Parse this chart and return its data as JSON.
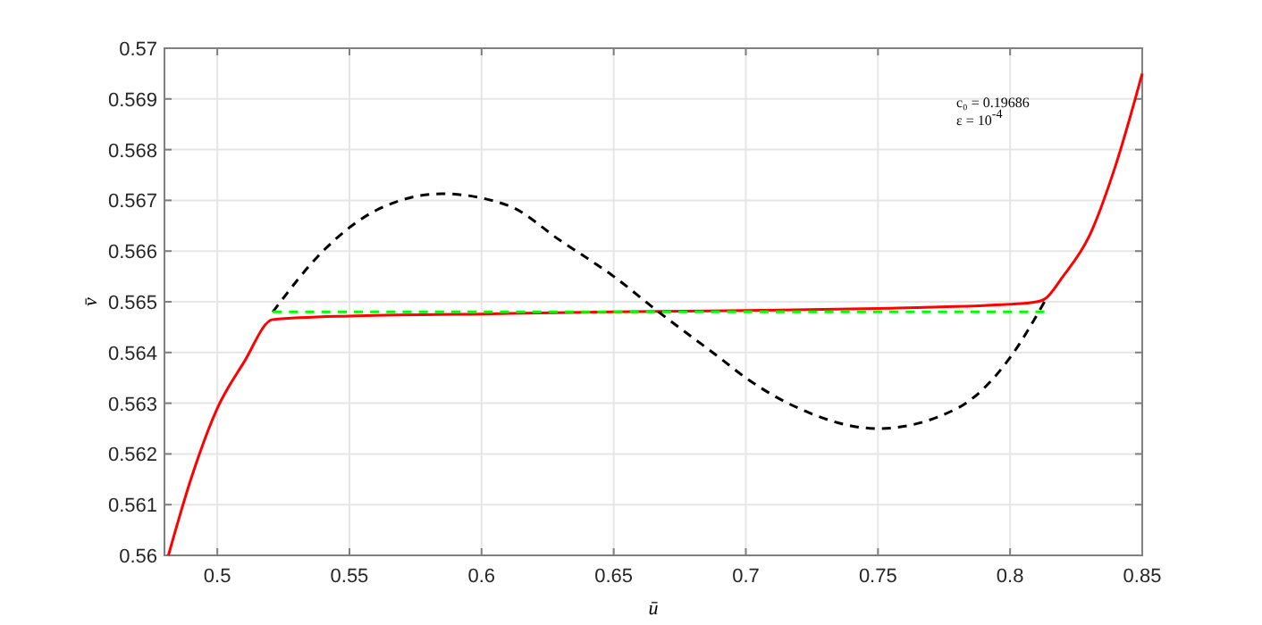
{
  "chart_data": {
    "type": "line",
    "xlabel": "ū",
    "ylabel": "v̄",
    "xlim": [
      0.48,
      0.85
    ],
    "xticks": [
      0.5,
      0.55,
      0.6,
      0.65,
      0.7,
      0.75,
      0.8,
      0.85
    ],
    "ylim": [
      0.56,
      0.57
    ],
    "yticks": [
      0.56,
      0.561,
      0.562,
      0.563,
      0.564,
      0.565,
      0.566,
      0.567,
      0.568,
      0.569,
      0.57
    ],
    "grid": true,
    "annotations": [
      "c₀ = 0.19686",
      "ε = 10$^{-4}$"
    ],
    "series": [
      {
        "color": "#ff0000",
        "line_style": "solid",
        "x": [
          0.4815,
          0.49,
          0.5,
          0.51,
          0.521,
          0.55,
          0.6,
          0.65,
          0.7,
          0.75,
          0.8,
          0.81,
          0.813,
          0.82,
          0.83,
          0.84,
          0.85
        ],
        "values": [
          0.56,
          0.5615,
          0.5629,
          0.5638,
          0.56465,
          0.56472,
          0.56476,
          0.5648,
          0.56483,
          0.56487,
          0.56495,
          0.565,
          0.56505,
          0.5655,
          0.5663,
          0.5677,
          0.5695
        ]
      },
      {
        "color": "#000000",
        "line_style": "dashed",
        "x": [
          0.521,
          0.54,
          0.56,
          0.585,
          0.61,
          0.63,
          0.65,
          0.667,
          0.69,
          0.7,
          0.72,
          0.75,
          0.78,
          0.8,
          0.813
        ],
        "values": [
          0.5648,
          0.566,
          0.5668,
          0.56713,
          0.5669,
          0.5662,
          0.5655,
          0.5648,
          0.5639,
          0.5635,
          0.5629,
          0.5625,
          0.5629,
          0.5639,
          0.565
        ]
      },
      {
        "color": "#00ff00",
        "line_style": "dashed",
        "x": [
          0.521,
          0.813
        ],
        "values": [
          0.5648,
          0.5648
        ]
      }
    ]
  }
}
